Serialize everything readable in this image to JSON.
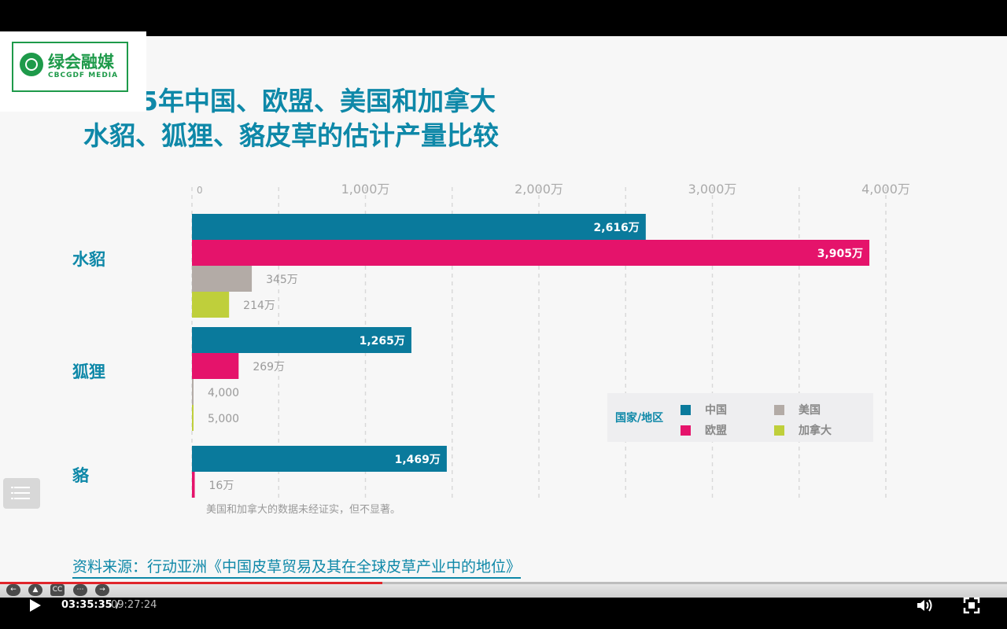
{
  "logo": {
    "cn": "绿会融媒",
    "en": "CBCGDF MEDIA"
  },
  "title": {
    "line1": "5年中国、欧盟、美国和加拿大",
    "line2": "水貂、狐狸、貉皮草的估计产量比较"
  },
  "chart_data": {
    "type": "bar",
    "orientation": "horizontal",
    "x_ticks": [
      "0",
      "1,000万",
      "2,000万",
      "3,000万",
      "4,000万"
    ],
    "xlim": [
      0,
      40000000
    ],
    "categories": [
      "水貂",
      "狐狸",
      "貉"
    ],
    "series": [
      {
        "name": "中国",
        "values": [
          26160000,
          12650000,
          14690000
        ],
        "labels": [
          "2,616万",
          "1,265万",
          "1,469万"
        ]
      },
      {
        "name": "欧盟",
        "values": [
          39050000,
          2690000,
          160000
        ],
        "labels": [
          "3,905万",
          "269万",
          "16万"
        ]
      },
      {
        "name": "美国",
        "values": [
          3450000,
          4000,
          null
        ],
        "labels": [
          "345万",
          "4,000",
          ""
        ]
      },
      {
        "name": "加拿大",
        "values": [
          2140000,
          5000,
          null
        ],
        "labels": [
          "214万",
          "5,000",
          ""
        ]
      }
    ],
    "colors": {
      "中国": "#0a7a9c",
      "欧盟": "#e5136b",
      "美国": "#b3aba6",
      "加拿大": "#bfcf3b"
    },
    "note": "美国和加拿大的数据未经证实，但不显著。",
    "legend": {
      "title": "国家/地区",
      "position": "bottom-right"
    },
    "grid": true
  },
  "source": "资料来源：行动亚洲《中国皮草贸易及其在全球皮草产业中的地位》",
  "player": {
    "current_time": "03:35:35 /",
    "total_time": "09:27:24",
    "progress": 0.38,
    "cc_label": "CC"
  }
}
